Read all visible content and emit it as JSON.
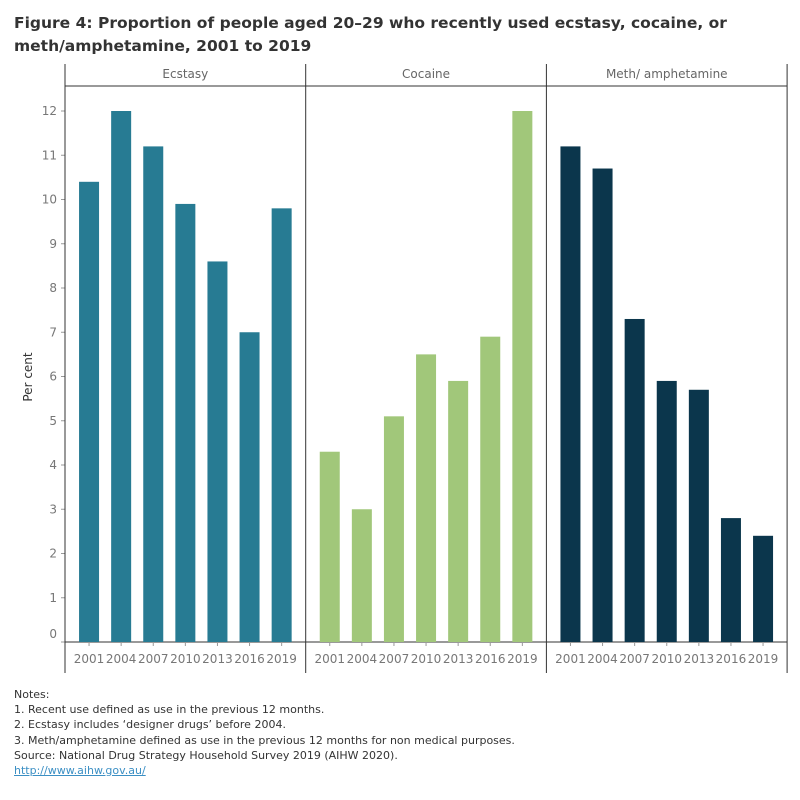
{
  "title": "Figure 4: Proportion of people aged 20–29 who recently used ecstasy, cocaine, or meth/amphetamine, 2001 to 2019",
  "chart_data": {
    "type": "bar",
    "ylabel": "Per cent",
    "ylim": [
      0,
      12
    ],
    "yticks": [
      "0",
      "1",
      "2",
      "3",
      "4",
      "5",
      "6",
      "7",
      "8",
      "9",
      "10",
      "11",
      "12"
    ],
    "grid": false,
    "categories": [
      "2001",
      "2004",
      "2007",
      "2010",
      "2013",
      "2016",
      "2019"
    ],
    "series": [
      {
        "name": "Ecstasy",
        "color": "#277b93",
        "values": [
          10.4,
          12.0,
          11.2,
          9.9,
          8.6,
          7.0,
          9.8
        ]
      },
      {
        "name": "Cocaine",
        "color": "#a1c77a",
        "values": [
          4.3,
          3.0,
          5.1,
          6.5,
          5.9,
          6.9,
          12.0
        ]
      },
      {
        "name": "Meth/ amphetamine",
        "color": "#0b364c",
        "values": [
          11.2,
          10.7,
          7.3,
          5.9,
          5.7,
          2.8,
          2.4
        ]
      }
    ]
  },
  "notes": {
    "heading": "Notes:",
    "lines": [
      "1. Recent use defined as use in the previous 12 months.",
      "2. Ecstasy includes ‘designer drugs’ before 2004.",
      "3. Meth/amphetamine defined as use in the previous 12 months for non medical purposes.",
      "Source:  National Drug Strategy Household Survey 2019 (AIHW 2020)."
    ],
    "link": "http://www.aihw.gov.au/"
  }
}
